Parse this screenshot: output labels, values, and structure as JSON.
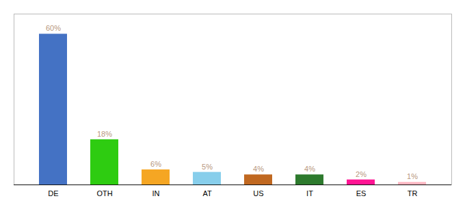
{
  "chart_data": {
    "type": "bar",
    "categories": [
      "DE",
      "OTH",
      "IN",
      "AT",
      "US",
      "IT",
      "ES",
      "TR"
    ],
    "values": [
      60,
      18,
      6,
      5,
      4,
      4,
      2,
      1
    ],
    "value_labels": [
      "60%",
      "18%",
      "6%",
      "5%",
      "4%",
      "4%",
      "2%",
      "1%"
    ],
    "colors": [
      "#4472c4",
      "#2ecc11",
      "#f5a623",
      "#87ceeb",
      "#c06820",
      "#2d7a2d",
      "#ff1493",
      "#ffb6c1"
    ],
    "ylim": [
      0,
      68
    ],
    "data_labels": true,
    "tick_labels": "x",
    "grid": false
  }
}
